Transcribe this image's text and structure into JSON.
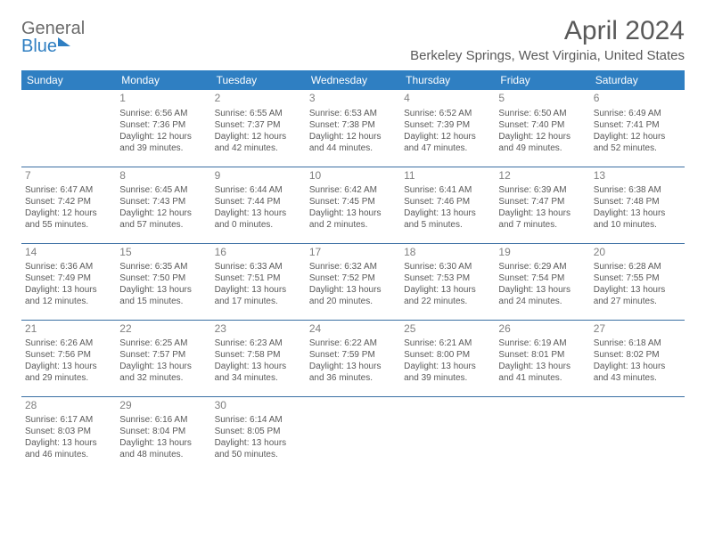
{
  "logo": {
    "line1": "General",
    "line2": "Blue"
  },
  "title": "April 2024",
  "location": "Berkeley Springs, West Virginia, United States",
  "header_bg": "#2f7fc2",
  "header_fg": "#ffffff",
  "text_color": "#595959",
  "divider_color": "#3a6fa3",
  "days": [
    "Sunday",
    "Monday",
    "Tuesday",
    "Wednesday",
    "Thursday",
    "Friday",
    "Saturday"
  ],
  "weeks": [
    [
      null,
      {
        "n": "1",
        "sr": "6:56 AM",
        "ss": "7:36 PM",
        "dl": "12 hours and 39 minutes."
      },
      {
        "n": "2",
        "sr": "6:55 AM",
        "ss": "7:37 PM",
        "dl": "12 hours and 42 minutes."
      },
      {
        "n": "3",
        "sr": "6:53 AM",
        "ss": "7:38 PM",
        "dl": "12 hours and 44 minutes."
      },
      {
        "n": "4",
        "sr": "6:52 AM",
        "ss": "7:39 PM",
        "dl": "12 hours and 47 minutes."
      },
      {
        "n": "5",
        "sr": "6:50 AM",
        "ss": "7:40 PM",
        "dl": "12 hours and 49 minutes."
      },
      {
        "n": "6",
        "sr": "6:49 AM",
        "ss": "7:41 PM",
        "dl": "12 hours and 52 minutes."
      }
    ],
    [
      {
        "n": "7",
        "sr": "6:47 AM",
        "ss": "7:42 PM",
        "dl": "12 hours and 55 minutes."
      },
      {
        "n": "8",
        "sr": "6:45 AM",
        "ss": "7:43 PM",
        "dl": "12 hours and 57 minutes."
      },
      {
        "n": "9",
        "sr": "6:44 AM",
        "ss": "7:44 PM",
        "dl": "13 hours and 0 minutes."
      },
      {
        "n": "10",
        "sr": "6:42 AM",
        "ss": "7:45 PM",
        "dl": "13 hours and 2 minutes."
      },
      {
        "n": "11",
        "sr": "6:41 AM",
        "ss": "7:46 PM",
        "dl": "13 hours and 5 minutes."
      },
      {
        "n": "12",
        "sr": "6:39 AM",
        "ss": "7:47 PM",
        "dl": "13 hours and 7 minutes."
      },
      {
        "n": "13",
        "sr": "6:38 AM",
        "ss": "7:48 PM",
        "dl": "13 hours and 10 minutes."
      }
    ],
    [
      {
        "n": "14",
        "sr": "6:36 AM",
        "ss": "7:49 PM",
        "dl": "13 hours and 12 minutes."
      },
      {
        "n": "15",
        "sr": "6:35 AM",
        "ss": "7:50 PM",
        "dl": "13 hours and 15 minutes."
      },
      {
        "n": "16",
        "sr": "6:33 AM",
        "ss": "7:51 PM",
        "dl": "13 hours and 17 minutes."
      },
      {
        "n": "17",
        "sr": "6:32 AM",
        "ss": "7:52 PM",
        "dl": "13 hours and 20 minutes."
      },
      {
        "n": "18",
        "sr": "6:30 AM",
        "ss": "7:53 PM",
        "dl": "13 hours and 22 minutes."
      },
      {
        "n": "19",
        "sr": "6:29 AM",
        "ss": "7:54 PM",
        "dl": "13 hours and 24 minutes."
      },
      {
        "n": "20",
        "sr": "6:28 AM",
        "ss": "7:55 PM",
        "dl": "13 hours and 27 minutes."
      }
    ],
    [
      {
        "n": "21",
        "sr": "6:26 AM",
        "ss": "7:56 PM",
        "dl": "13 hours and 29 minutes."
      },
      {
        "n": "22",
        "sr": "6:25 AM",
        "ss": "7:57 PM",
        "dl": "13 hours and 32 minutes."
      },
      {
        "n": "23",
        "sr": "6:23 AM",
        "ss": "7:58 PM",
        "dl": "13 hours and 34 minutes."
      },
      {
        "n": "24",
        "sr": "6:22 AM",
        "ss": "7:59 PM",
        "dl": "13 hours and 36 minutes."
      },
      {
        "n": "25",
        "sr": "6:21 AM",
        "ss": "8:00 PM",
        "dl": "13 hours and 39 minutes."
      },
      {
        "n": "26",
        "sr": "6:19 AM",
        "ss": "8:01 PM",
        "dl": "13 hours and 41 minutes."
      },
      {
        "n": "27",
        "sr": "6:18 AM",
        "ss": "8:02 PM",
        "dl": "13 hours and 43 minutes."
      }
    ],
    [
      {
        "n": "28",
        "sr": "6:17 AM",
        "ss": "8:03 PM",
        "dl": "13 hours and 46 minutes."
      },
      {
        "n": "29",
        "sr": "6:16 AM",
        "ss": "8:04 PM",
        "dl": "13 hours and 48 minutes."
      },
      {
        "n": "30",
        "sr": "6:14 AM",
        "ss": "8:05 PM",
        "dl": "13 hours and 50 minutes."
      },
      null,
      null,
      null,
      null
    ]
  ],
  "labels": {
    "sunrise": "Sunrise:",
    "sunset": "Sunset:",
    "daylight": "Daylight:"
  }
}
